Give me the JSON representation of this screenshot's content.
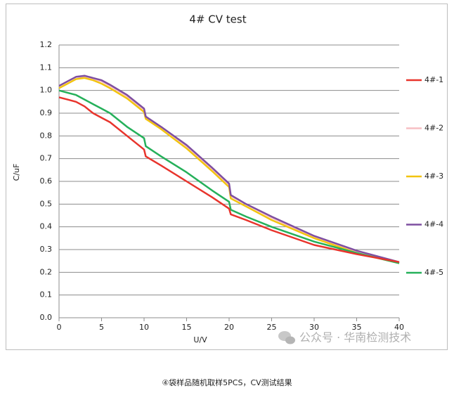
{
  "chart_data": {
    "type": "line",
    "title": "4# CV test",
    "x_label": "U/V",
    "y_label": "C/uF",
    "x": [
      0,
      1,
      2,
      3,
      4,
      5,
      6,
      8,
      10,
      10.2,
      12,
      15,
      18,
      20,
      20.2,
      22,
      25,
      30,
      35,
      40
    ],
    "series": [
      {
        "name": "4#-1",
        "color": "#e8342c",
        "values": [
          0.97,
          0.96,
          0.95,
          0.93,
          0.9,
          0.88,
          0.86,
          0.8,
          0.74,
          0.71,
          0.67,
          0.6,
          0.53,
          0.48,
          0.455,
          0.43,
          0.385,
          0.32,
          0.28,
          0.245
        ]
      },
      {
        "name": "4#-2",
        "color": "#f7bfc4",
        "values": [
          1.02,
          1.04,
          1.06,
          1.06,
          1.05,
          1.04,
          1.02,
          0.975,
          0.915,
          0.88,
          0.84,
          0.755,
          0.655,
          0.585,
          0.535,
          0.5,
          0.44,
          0.355,
          0.29,
          0.245
        ]
      },
      {
        "name": "4#-3",
        "color": "#f2c40f",
        "values": [
          1.01,
          1.03,
          1.05,
          1.055,
          1.045,
          1.03,
          1.01,
          0.965,
          0.905,
          0.875,
          0.83,
          0.745,
          0.645,
          0.575,
          0.525,
          0.49,
          0.43,
          0.35,
          0.285,
          0.24
        ]
      },
      {
        "name": "4#-4",
        "color": "#7e4fa0",
        "values": [
          1.02,
          1.04,
          1.06,
          1.065,
          1.055,
          1.045,
          1.025,
          0.98,
          0.92,
          0.885,
          0.84,
          0.76,
          0.66,
          0.59,
          0.54,
          0.5,
          0.445,
          0.36,
          0.295,
          0.245
        ]
      },
      {
        "name": "4#-5",
        "color": "#25b05a",
        "values": [
          1.0,
          0.99,
          0.98,
          0.96,
          0.94,
          0.92,
          0.9,
          0.84,
          0.79,
          0.755,
          0.71,
          0.64,
          0.56,
          0.51,
          0.475,
          0.445,
          0.4,
          0.335,
          0.285,
          0.24
        ]
      }
    ],
    "xlim": [
      0,
      40
    ],
    "xticks": [
      0,
      5,
      10,
      15,
      20,
      25,
      30,
      35,
      40
    ],
    "ylim": [
      0,
      1.2
    ],
    "yticks": [
      {
        "value": 0,
        "label": "0.0"
      },
      0.1,
      0.2,
      0.3,
      0.4,
      0.5,
      0.6,
      0.7,
      0.8,
      0.9,
      {
        "value": 1,
        "label": "1.0"
      },
      1.1,
      1.2
    ],
    "grid": true,
    "legend": "right"
  },
  "watermark": "公众号 · 华南检测技术",
  "caption": "④袋样品随机取样5PCS，CV测试结果"
}
